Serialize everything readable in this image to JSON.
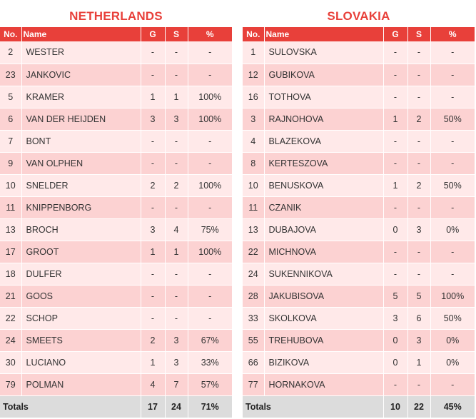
{
  "headers": {
    "no": "No.",
    "name": "Name",
    "g": "G",
    "s": "S",
    "pct": "%"
  },
  "totals_label": "Totals",
  "teams": [
    {
      "name": "NETHERLANDS",
      "players": [
        {
          "no": "2",
          "name": "WESTER",
          "g": "-",
          "s": "-",
          "pct": "-"
        },
        {
          "no": "23",
          "name": "JANKOVIC",
          "g": "-",
          "s": "-",
          "pct": "-"
        },
        {
          "no": "5",
          "name": "KRAMER",
          "g": "1",
          "s": "1",
          "pct": "100%"
        },
        {
          "no": "6",
          "name": "VAN DER HEIJDEN",
          "g": "3",
          "s": "3",
          "pct": "100%"
        },
        {
          "no": "7",
          "name": "BONT",
          "g": "-",
          "s": "-",
          "pct": "-"
        },
        {
          "no": "9",
          "name": "VAN OLPHEN",
          "g": "-",
          "s": "-",
          "pct": "-"
        },
        {
          "no": "10",
          "name": "SNELDER",
          "g": "2",
          "s": "2",
          "pct": "100%"
        },
        {
          "no": "11",
          "name": "KNIPPENBORG",
          "g": "-",
          "s": "-",
          "pct": "-"
        },
        {
          "no": "13",
          "name": "BROCH",
          "g": "3",
          "s": "4",
          "pct": "75%"
        },
        {
          "no": "17",
          "name": "GROOT",
          "g": "1",
          "s": "1",
          "pct": "100%"
        },
        {
          "no": "18",
          "name": "DULFER",
          "g": "-",
          "s": "-",
          "pct": "-"
        },
        {
          "no": "21",
          "name": "GOOS",
          "g": "-",
          "s": "-",
          "pct": "-"
        },
        {
          "no": "22",
          "name": "SCHOP",
          "g": "-",
          "s": "-",
          "pct": "-"
        },
        {
          "no": "24",
          "name": "SMEETS",
          "g": "2",
          "s": "3",
          "pct": "67%"
        },
        {
          "no": "30",
          "name": "LUCIANO",
          "g": "1",
          "s": "3",
          "pct": "33%"
        },
        {
          "no": "79",
          "name": "POLMAN",
          "g": "4",
          "s": "7",
          "pct": "57%"
        }
      ],
      "totals": {
        "g": "17",
        "s": "24",
        "pct": "71%"
      }
    },
    {
      "name": "SLOVAKIA",
      "players": [
        {
          "no": "1",
          "name": "SULOVSKA",
          "g": "-",
          "s": "-",
          "pct": "-"
        },
        {
          "no": "12",
          "name": "GUBIKOVA",
          "g": "-",
          "s": "-",
          "pct": "-"
        },
        {
          "no": "16",
          "name": "TOTHOVA",
          "g": "-",
          "s": "-",
          "pct": "-"
        },
        {
          "no": "3",
          "name": "RAJNOHOVA",
          "g": "1",
          "s": "2",
          "pct": "50%"
        },
        {
          "no": "4",
          "name": "BLAZEKOVA",
          "g": "-",
          "s": "-",
          "pct": "-"
        },
        {
          "no": "8",
          "name": "KERTESZOVA",
          "g": "-",
          "s": "-",
          "pct": "-"
        },
        {
          "no": "10",
          "name": "BENUSKOVA",
          "g": "1",
          "s": "2",
          "pct": "50%"
        },
        {
          "no": "11",
          "name": "CZANIK",
          "g": "-",
          "s": "-",
          "pct": "-"
        },
        {
          "no": "13",
          "name": "DUBAJOVA",
          "g": "0",
          "s": "3",
          "pct": "0%"
        },
        {
          "no": "22",
          "name": "MICHNOVA",
          "g": "-",
          "s": "-",
          "pct": "-"
        },
        {
          "no": "24",
          "name": "SUKENNIKOVA",
          "g": "-",
          "s": "-",
          "pct": "-"
        },
        {
          "no": "28",
          "name": "JAKUBISOVA",
          "g": "5",
          "s": "5",
          "pct": "100%"
        },
        {
          "no": "33",
          "name": "SKOLKOVA",
          "g": "3",
          "s": "6",
          "pct": "50%"
        },
        {
          "no": "55",
          "name": "TREHUBOVA",
          "g": "0",
          "s": "3",
          "pct": "0%"
        },
        {
          "no": "66",
          "name": "BIZIKOVA",
          "g": "0",
          "s": "1",
          "pct": "0%"
        },
        {
          "no": "77",
          "name": "HORNAKOVA",
          "g": "-",
          "s": "-",
          "pct": "-"
        }
      ],
      "totals": {
        "g": "10",
        "s": "22",
        "pct": "45%"
      }
    }
  ]
}
